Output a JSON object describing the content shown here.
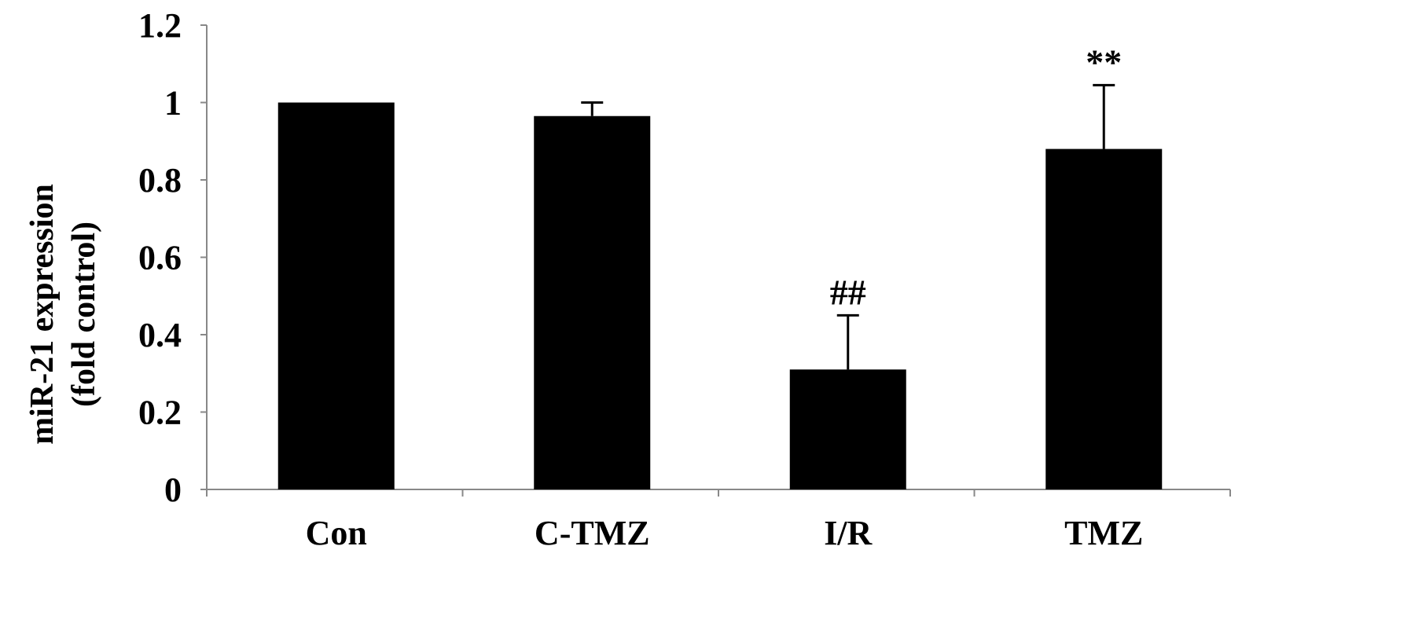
{
  "chart_data": {
    "type": "bar",
    "title": "",
    "xlabel": "",
    "ylabel": [
      "miR-21 expression",
      "(fold control)"
    ],
    "ylim": [
      0,
      1.2
    ],
    "yticks": [
      "0",
      "0.2",
      "0.4",
      "0.6",
      "0.8",
      "1",
      "1.2"
    ],
    "categories": [
      "Con",
      "C-TMZ",
      "I/R",
      "TMZ"
    ],
    "values": [
      1.0,
      0.965,
      0.31,
      0.88
    ],
    "errors": [
      0.0,
      0.035,
      0.14,
      0.165
    ],
    "annotations": [
      "",
      "",
      "##",
      "**"
    ],
    "bar_color": "#000000",
    "grid": false,
    "legend": "none"
  }
}
